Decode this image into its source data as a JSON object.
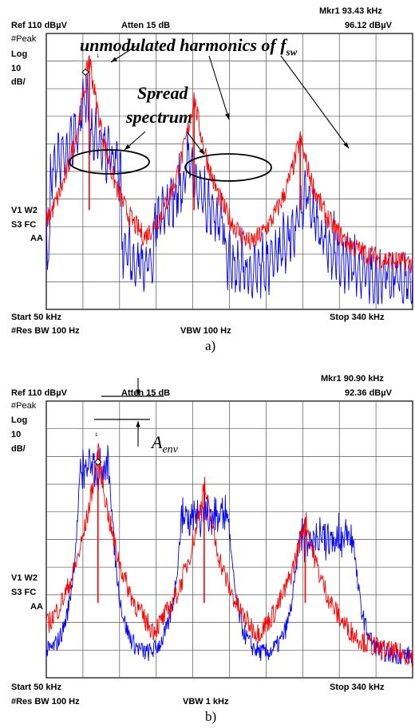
{
  "panels": [
    {
      "id": "a",
      "caption": "a)",
      "header": {
        "ref": "Ref 110 dBµV",
        "atten": "Atten 15 dB",
        "marker_label": "Mkr1  93.43 kHz",
        "marker_value": "96.12 dBµV"
      },
      "left_labels": {
        "detector": "#Peak",
        "scale": "Log",
        "scale_value": "10",
        "scale_unit": "dB/"
      },
      "side_labels": {
        "v1": "V1  W2",
        "s3": "S3  FC",
        "aa": "AA"
      },
      "footer": {
        "start": "Start 50 kHz",
        "stop": "Stop 340 kHz",
        "rbw": "#Res BW 100 Hz",
        "vbw": "VBW 100 Hz"
      },
      "marker_number": "1",
      "annotations": {
        "harmonics_main": "unmodulated harmonics of f",
        "harmonics_sub": "sw",
        "spread_line1": "Spread",
        "spread_line2": "spectrum"
      }
    },
    {
      "id": "b",
      "caption": "b)",
      "header": {
        "ref": "Ref 110 dBµV",
        "atten": "Atten 15 dB",
        "marker_label": "Mkr1  90.90 kHz",
        "marker_value": "92.36 dBµV"
      },
      "left_labels": {
        "detector": "#Peak",
        "scale": "Log",
        "scale_value": "10",
        "scale_unit": "dB/"
      },
      "side_labels": {
        "v1": "V1  W2",
        "s3": "S3  FC",
        "aa": "AA"
      },
      "footer": {
        "start": "Start 50 kHz",
        "stop": "Stop 340 kHz",
        "rbw": "#Res BW 100 Hz",
        "vbw": "VBW 1 kHz"
      },
      "marker_number": "1",
      "annotations": {
        "env_main": "A",
        "env_sub": "env"
      }
    }
  ],
  "chart_data": [
    {
      "type": "line",
      "xlim": [
        50,
        340
      ],
      "ylim": [
        10,
        110
      ],
      "grid": true,
      "colors": {
        "spread": "#0000ff",
        "unmodulated": "#ff0000"
      },
      "series": [
        {
          "color": "#0000ff",
          "peaks": [
            {
              "x": 81,
              "y": 98
            },
            {
              "x": 163,
              "y": 78
            },
            {
              "x": 256,
              "y": 64
            }
          ],
          "floor": 31
        },
        {
          "color": "#ff0000",
          "peaks": [
            {
              "x": 84,
              "y": 102
            },
            {
              "x": 167,
              "y": 87
            },
            {
              "x": 251,
              "y": 72
            }
          ],
          "floor": 26
        }
      ]
    },
    {
      "type": "line",
      "xlim": [
        50,
        340
      ],
      "ylim": [
        10,
        110
      ],
      "grid": true,
      "colors": {
        "spread": "#0000ff",
        "unmodulated": "#ff0000"
      },
      "series": [
        {
          "color": "#0000ff",
          "plateaus": [
            {
              "x1": 77,
              "x2": 100,
              "y": 86
            },
            {
              "x1": 157,
              "x2": 194,
              "y": 69
            },
            {
              "x1": 250,
              "x2": 293,
              "y": 61
            }
          ],
          "floor": 18
        },
        {
          "color": "#ff0000",
          "peaks": [
            {
              "x": 90.9,
              "y": 92.4
            },
            {
              "x": 175,
              "y": 80
            },
            {
              "x": 255,
              "y": 68
            }
          ],
          "floor": 17
        }
      ]
    }
  ]
}
